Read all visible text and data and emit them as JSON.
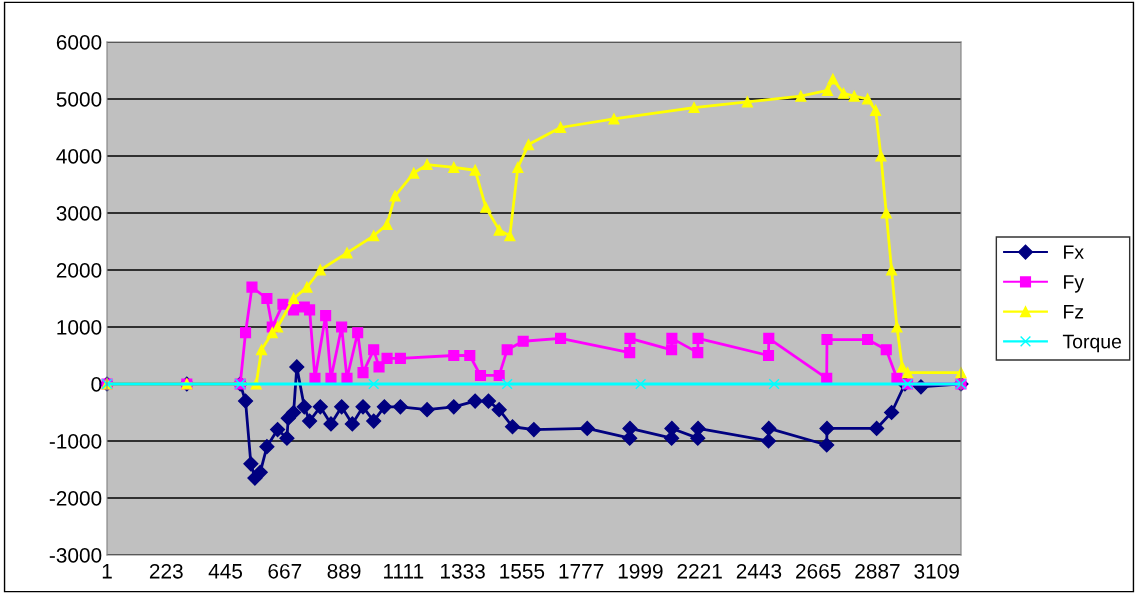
{
  "chart_data": {
    "type": "line",
    "xlim": [
      1,
      3200
    ],
    "xticks": [
      1,
      223,
      445,
      667,
      889,
      1111,
      1333,
      1555,
      1777,
      1999,
      2221,
      2443,
      2665,
      2887,
      3109
    ],
    "ylim": [
      -3000,
      6000
    ],
    "yticks": [
      -3000,
      -2000,
      -1000,
      0,
      1000,
      2000,
      3000,
      4000,
      5000,
      6000
    ],
    "grid": "y",
    "legend": "right",
    "series": [
      {
        "name": "Fx",
        "color": "#000080",
        "marker": "diamond",
        "x": [
          1,
          300,
          500,
          520,
          540,
          555,
          575,
          600,
          640,
          675,
          680,
          700,
          712,
          740,
          760,
          800,
          840,
          880,
          920,
          960,
          1000,
          1040,
          1100,
          1200,
          1300,
          1380,
          1430,
          1470,
          1520,
          1600,
          1800,
          1959,
          1960,
          2116,
          2117,
          2214,
          2215,
          2479,
          2480,
          2697,
          2698,
          2884,
          2940,
          2990,
          3050,
          3200
        ],
        "values": [
          0,
          0,
          0,
          -300,
          -1400,
          -1650,
          -1550,
          -1100,
          -800,
          -950,
          -600,
          -500,
          300,
          -400,
          -650,
          -400,
          -700,
          -400,
          -700,
          -400,
          -650,
          -400,
          -400,
          -450,
          -400,
          -300,
          -300,
          -450,
          -750,
          -800,
          -780,
          -950,
          -780,
          -950,
          -780,
          -950,
          -780,
          -1000,
          -780,
          -1070,
          -780,
          -780,
          -500,
          0,
          -50,
          0
        ]
      },
      {
        "name": "Fy",
        "color": "#ff00ff",
        "marker": "square",
        "x": [
          1,
          300,
          500,
          520,
          544,
          600,
          620,
          660,
          700,
          740,
          760,
          780,
          820,
          840,
          880,
          900,
          940,
          960,
          1000,
          1020,
          1050,
          1100,
          1300,
          1360,
          1400,
          1470,
          1500,
          1560,
          1700,
          1959,
          1960,
          2116,
          2117,
          2214,
          2215,
          2479,
          2480,
          2697,
          2698,
          2850,
          2920,
          2960,
          3000,
          3200
        ],
        "values": [
          0,
          0,
          0,
          900,
          1700,
          1500,
          1000,
          1400,
          1300,
          1350,
          1300,
          100,
          1200,
          100,
          1000,
          100,
          900,
          200,
          600,
          300,
          450,
          450,
          500,
          500,
          150,
          150,
          600,
          750,
          800,
          550,
          800,
          600,
          800,
          550,
          800,
          500,
          800,
          100,
          780,
          780,
          600,
          100,
          0,
          0
        ]
      },
      {
        "name": "Fz",
        "color": "#ffff00",
        "marker": "triangle",
        "x": [
          1,
          300,
          560,
          580,
          620,
          640,
          700,
          750,
          800,
          900,
          1000,
          1050,
          1080,
          1150,
          1200,
          1300,
          1380,
          1420,
          1470,
          1510,
          1540,
          1580,
          1700,
          1900,
          2200,
          2400,
          2600,
          2700,
          2720,
          2760,
          2800,
          2850,
          2880,
          2900,
          2920,
          2940,
          2960,
          2980,
          3000,
          3200
        ],
        "values": [
          0,
          0,
          0,
          600,
          900,
          1000,
          1500,
          1700,
          2000,
          2300,
          2600,
          2800,
          3300,
          3700,
          3850,
          3800,
          3750,
          3100,
          2700,
          2600,
          3800,
          4200,
          4500,
          4650,
          4850,
          4950,
          5050,
          5150,
          5350,
          5100,
          5050,
          5000,
          4800,
          4000,
          3000,
          2000,
          1000,
          300,
          200,
          200
        ]
      },
      {
        "name": "Torque",
        "color": "#00ffff",
        "marker": "cross",
        "x": [
          1,
          500,
          1000,
          1500,
          2000,
          2500,
          3000,
          3200
        ],
        "values": [
          0,
          0,
          0,
          0,
          0,
          0,
          0,
          0
        ]
      }
    ]
  }
}
